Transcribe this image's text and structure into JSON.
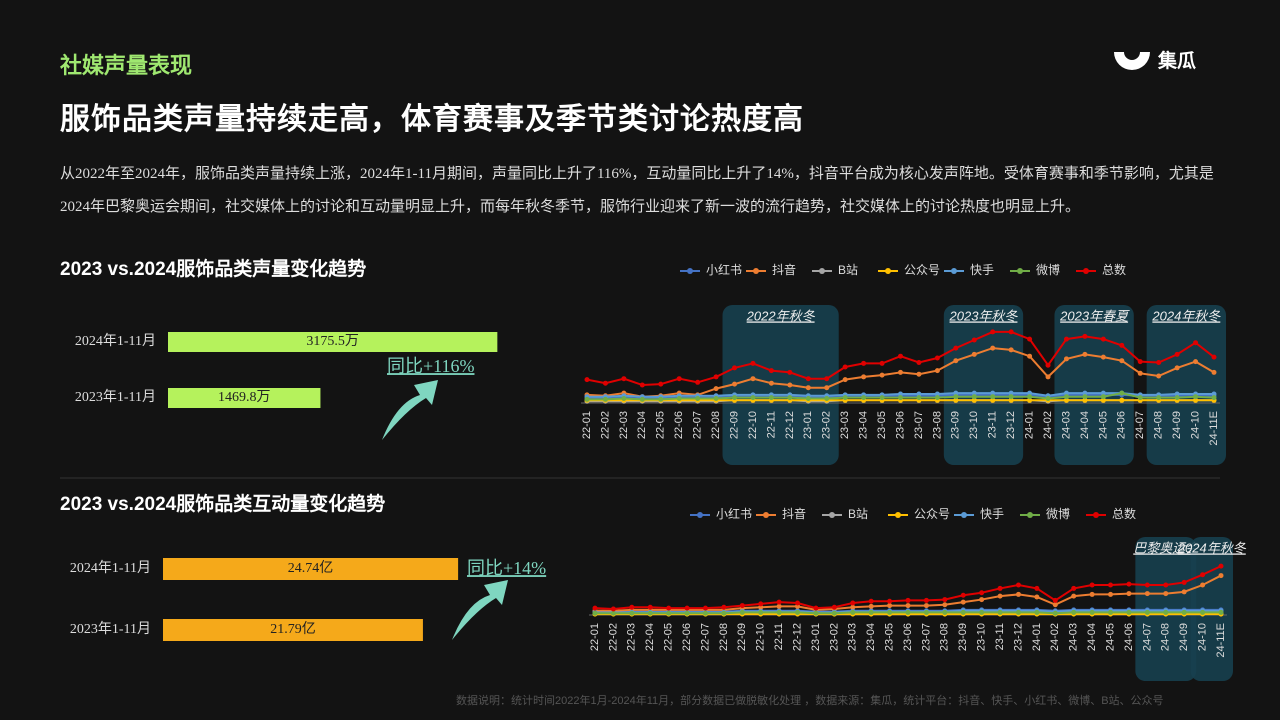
{
  "header": {
    "section": "社媒声量表现",
    "title": "服饰品类声量持续走高，体育赛事及季节类讨论热度高",
    "logo": "集瓜"
  },
  "description": "从2022年至2024年，服饰品类声量持续上涨，2024年1-11月期间，声量同比上升了116%，互动量同比上升了14%，抖音平台成为核心发声阵地。受体育赛事和季节影响，尤其是2024年巴黎奥运会期间，社交媒体上的讨论和互动量明显上升，而每年秋冬季节，服饰行业迎来了新一波的流行趋势，社交媒体上的讨论热度也明显上升。",
  "footnote": "数据说明：统计时间2022年1月-2024年11月，部分数据已做脱敏化处理 ，数据来源：集瓜，统计平台：抖音、快手、小红书、微博、B站、公众号",
  "chart_data": [
    {
      "type": "bar",
      "title": "2023 vs.2024服饰品类声量变化趋势",
      "categories": [
        "2024年1-11月",
        "2023年1-11月"
      ],
      "values": [
        3175.5,
        1469.8
      ],
      "value_labels": [
        "3175.5万",
        "1469.8万"
      ],
      "color": "#b5f25c",
      "xlim": [
        0,
        3500
      ],
      "annotation": "同比+116%"
    },
    {
      "type": "line",
      "categories": [
        "22-01",
        "22-02",
        "22-03",
        "22-04",
        "22-05",
        "22-06",
        "22-07",
        "22-08",
        "22-09",
        "22-10",
        "22-11",
        "22-12",
        "23-01",
        "23-02",
        "23-03",
        "23-04",
        "23-05",
        "23-06",
        "23-07",
        "23-08",
        "23-09",
        "23-10",
        "23-11",
        "23-12",
        "24-01",
        "24-02",
        "24-03",
        "24-04",
        "24-05",
        "24-06",
        "24-07",
        "24-08",
        "24-09",
        "24-10",
        "24-11E"
      ],
      "ylim": [
        0,
        100
      ],
      "highlights": [
        {
          "label": "2022年秋冬",
          "from": "22-09",
          "to": "23-02"
        },
        {
          "label": "2023年秋冬",
          "from": "23-09",
          "to": "23-12"
        },
        {
          "label": "2023年春夏",
          "from": "24-03",
          "to": "24-06"
        },
        {
          "label": "2024年秋冬",
          "from": "24-08",
          "to": "24-11E"
        }
      ],
      "series": [
        {
          "name": "小红书",
          "color": "#4472c4",
          "values": [
            5,
            5,
            6,
            5,
            5,
            6,
            6,
            6,
            7,
            7,
            7,
            7,
            6,
            6,
            7,
            7,
            8,
            8,
            8,
            8,
            9,
            9,
            9,
            9,
            9,
            7,
            9,
            9,
            9,
            9,
            8,
            8,
            8,
            9,
            8
          ]
        },
        {
          "name": "抖音",
          "color": "#ed7d31",
          "values": [
            9,
            8,
            11,
            7,
            8,
            11,
            9,
            16,
            21,
            27,
            22,
            20,
            17,
            17,
            26,
            29,
            31,
            34,
            32,
            36,
            47,
            54,
            61,
            59,
            52,
            29,
            49,
            54,
            51,
            47,
            33,
            30,
            39,
            46,
            34
          ]
        },
        {
          "name": "B站",
          "color": "#a5a5a5",
          "values": [
            2,
            2,
            2,
            2,
            2,
            2,
            2,
            2,
            3,
            3,
            3,
            3,
            2,
            2,
            3,
            3,
            3,
            3,
            3,
            3,
            3,
            3,
            3,
            3,
            3,
            2,
            3,
            3,
            3,
            3,
            3,
            3,
            3,
            3,
            3
          ]
        },
        {
          "name": "公众号",
          "color": "#ffc000",
          "values": [
            3,
            3,
            3,
            3,
            3,
            3,
            3,
            3,
            3,
            3,
            3,
            3,
            3,
            3,
            3,
            3,
            3,
            3,
            3,
            3,
            3,
            3,
            3,
            3,
            3,
            3,
            3,
            3,
            3,
            3,
            3,
            3,
            3,
            3,
            3
          ]
        },
        {
          "name": "快手",
          "color": "#5b9bd5",
          "values": [
            7,
            7,
            8,
            7,
            7,
            8,
            8,
            8,
            9,
            9,
            9,
            9,
            8,
            8,
            9,
            9,
            9,
            10,
            10,
            10,
            11,
            11,
            11,
            11,
            11,
            8,
            11,
            11,
            11,
            11,
            9,
            9,
            10,
            10,
            10
          ]
        },
        {
          "name": "微博",
          "color": "#70ad47",
          "values": [
            4,
            4,
            5,
            4,
            4,
            5,
            5,
            5,
            6,
            6,
            6,
            6,
            5,
            5,
            6,
            6,
            6,
            6,
            6,
            6,
            7,
            7,
            7,
            7,
            7,
            5,
            7,
            7,
            7,
            11,
            6,
            6,
            6,
            7,
            6
          ]
        },
        {
          "name": "总数",
          "color": "#e00000",
          "values": [
            26,
            22,
            27,
            20,
            21,
            27,
            23,
            29,
            39,
            44,
            36,
            34,
            27,
            27,
            40,
            44,
            44,
            52,
            45,
            50,
            61,
            70,
            79,
            79,
            71,
            42,
            71,
            74,
            71,
            64,
            46,
            45,
            54,
            67,
            51
          ]
        }
      ]
    },
    {
      "type": "bar",
      "title": "2023 vs.2024服饰品类互动量变化趋势",
      "categories": [
        "2024年1-11月",
        "2023年1-11月"
      ],
      "values": [
        24.74,
        21.79
      ],
      "value_labels": [
        "24.74亿",
        "21.79亿"
      ],
      "color": "#f5a91a",
      "xlim": [
        0,
        28
      ],
      "annotation": "同比+14%"
    },
    {
      "type": "line",
      "categories": [
        "22-01",
        "22-02",
        "22-03",
        "22-04",
        "22-05",
        "22-06",
        "22-07",
        "22-08",
        "22-09",
        "22-10",
        "22-11",
        "22-12",
        "23-01",
        "23-02",
        "23-03",
        "23-04",
        "23-05",
        "23-06",
        "23-07",
        "23-08",
        "23-09",
        "23-10",
        "23-11",
        "23-12",
        "24-01",
        "24-02",
        "24-03",
        "24-04",
        "24-05",
        "24-06",
        "24-07",
        "24-08",
        "24-09",
        "24-10",
        "24-11E"
      ],
      "ylim": [
        0,
        70
      ],
      "highlights": [
        {
          "label": "巴黎奥运会",
          "from": "24-07",
          "to": "24-09"
        },
        {
          "label": "2024年秋冬",
          "from": "24-10",
          "to": "24-11E"
        }
      ],
      "series": [
        {
          "name": "小红书",
          "color": "#4472c4",
          "values": [
            4,
            4,
            4,
            4,
            4,
            4,
            4,
            4,
            5,
            5,
            5,
            5,
            4,
            4,
            5,
            5,
            5,
            5,
            5,
            5,
            6,
            6,
            6,
            6,
            6,
            5,
            6,
            6,
            6,
            6,
            6,
            6,
            6,
            6,
            6
          ]
        },
        {
          "name": "抖音",
          "color": "#ed7d31",
          "values": [
            5,
            5,
            6,
            6,
            6,
            6,
            6,
            6,
            8,
            9,
            10,
            10,
            6,
            7,
            9,
            10,
            11,
            11,
            11,
            12,
            15,
            18,
            22,
            24,
            21,
            12,
            22,
            24,
            24,
            25,
            25,
            25,
            27,
            35,
            46
          ]
        },
        {
          "name": "B站",
          "color": "#a5a5a5",
          "values": [
            2,
            2,
            2,
            2,
            2,
            2,
            2,
            2,
            2,
            2,
            2,
            2,
            2,
            2,
            2,
            2,
            2,
            2,
            2,
            2,
            2,
            2,
            2,
            2,
            2,
            2,
            2,
            2,
            2,
            2,
            2,
            2,
            2,
            2,
            2
          ]
        },
        {
          "name": "公众号",
          "color": "#ffc000",
          "values": [
            1,
            1,
            1,
            1,
            1,
            1,
            1,
            1,
            1,
            1,
            1,
            1,
            1,
            1,
            1,
            1,
            1,
            1,
            1,
            1,
            1,
            1,
            1,
            1,
            1,
            1,
            1,
            1,
            1,
            1,
            1,
            1,
            1,
            1,
            1
          ]
        },
        {
          "name": "快手",
          "color": "#5b9bd5",
          "values": [
            3,
            3,
            3,
            3,
            3,
            3,
            3,
            3,
            4,
            4,
            4,
            4,
            3,
            3,
            4,
            4,
            4,
            4,
            4,
            4,
            5,
            5,
            5,
            5,
            5,
            4,
            5,
            5,
            5,
            5,
            5,
            5,
            5,
            5,
            5
          ]
        },
        {
          "name": "微博",
          "color": "#70ad47",
          "values": [
            2,
            2,
            2,
            2,
            2,
            2,
            2,
            2,
            3,
            3,
            3,
            3,
            2,
            2,
            3,
            3,
            3,
            3,
            3,
            3,
            3,
            3,
            3,
            3,
            3,
            2,
            3,
            3,
            3,
            3,
            3,
            3,
            3,
            3,
            3
          ]
        },
        {
          "name": "总数",
          "color": "#e00000",
          "values": [
            8,
            7,
            9,
            9,
            8,
            8,
            8,
            9,
            11,
            13,
            15,
            14,
            8,
            9,
            14,
            16,
            16,
            17,
            17,
            18,
            23,
            26,
            31,
            35,
            31,
            17,
            31,
            35,
            35,
            36,
            35,
            35,
            38,
            47,
            57
          ]
        }
      ]
    }
  ]
}
